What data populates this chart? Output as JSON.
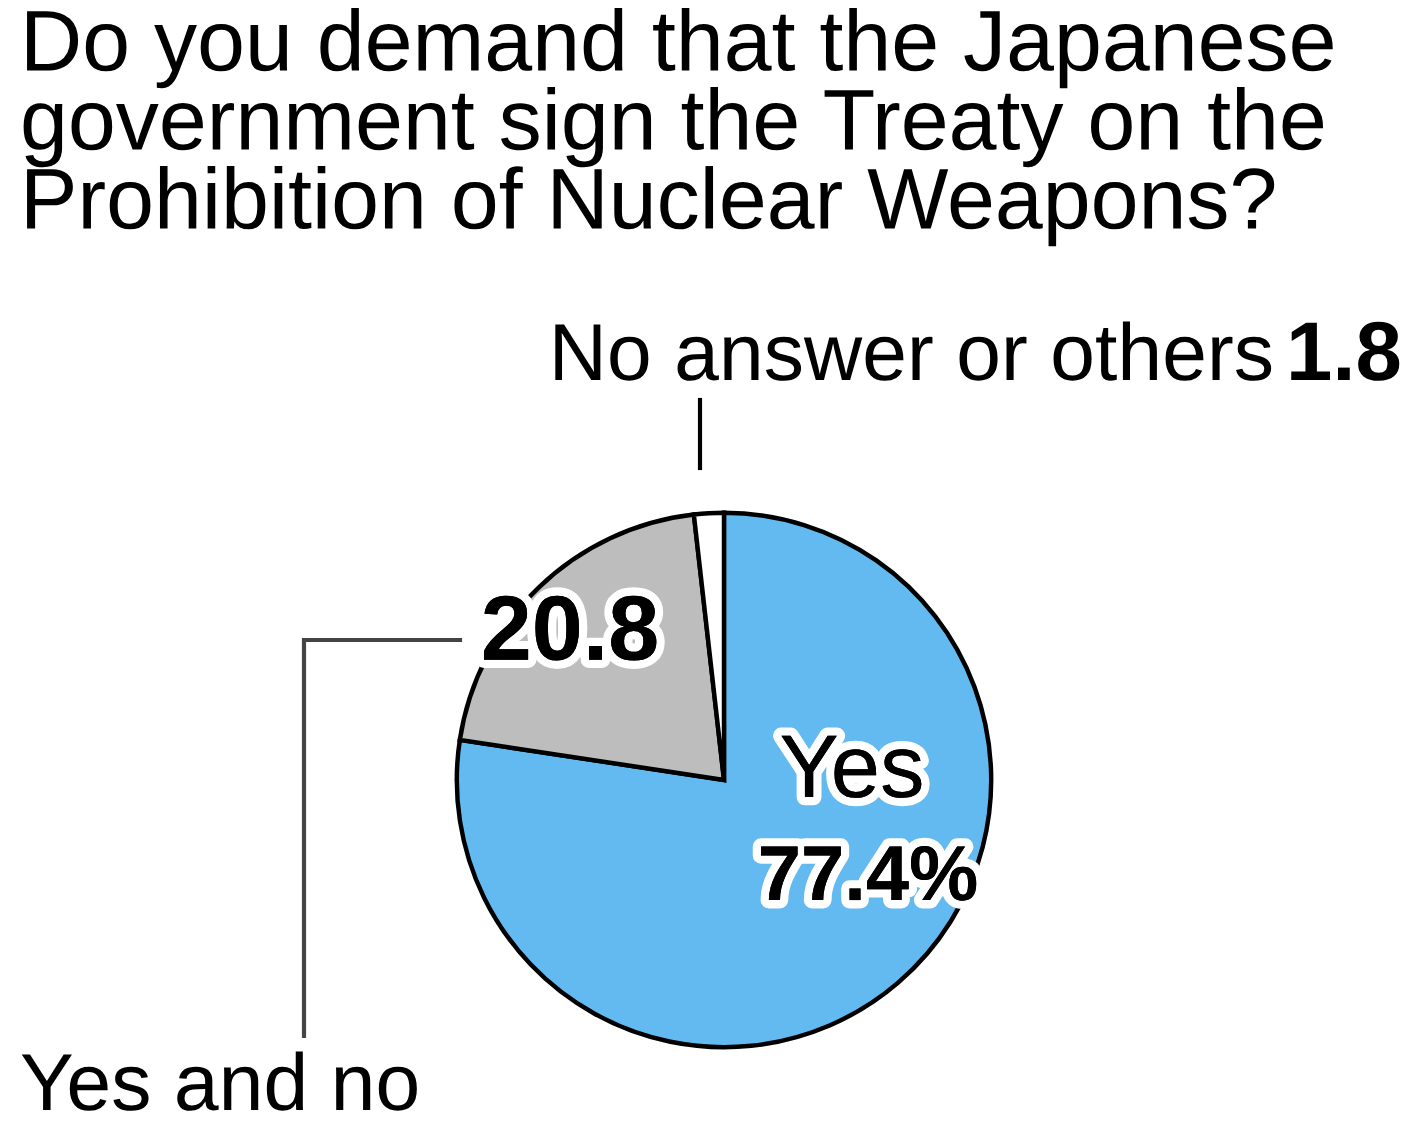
{
  "chart_data": {
    "type": "pie",
    "title": "Do you demand that the Japanese\ngovernment sign the Treaty on the\nProhibition of Nuclear Weapons?",
    "categories": [
      "Yes",
      "Yes and no",
      "No answer or others"
    ],
    "values": [
      77.4,
      20.8,
      1.8
    ],
    "value_labels": [
      "77.4%",
      "20.8",
      "1.8"
    ],
    "colors": [
      "#62baf0",
      "#bdbdbd",
      "#ffffff"
    ]
  }
}
